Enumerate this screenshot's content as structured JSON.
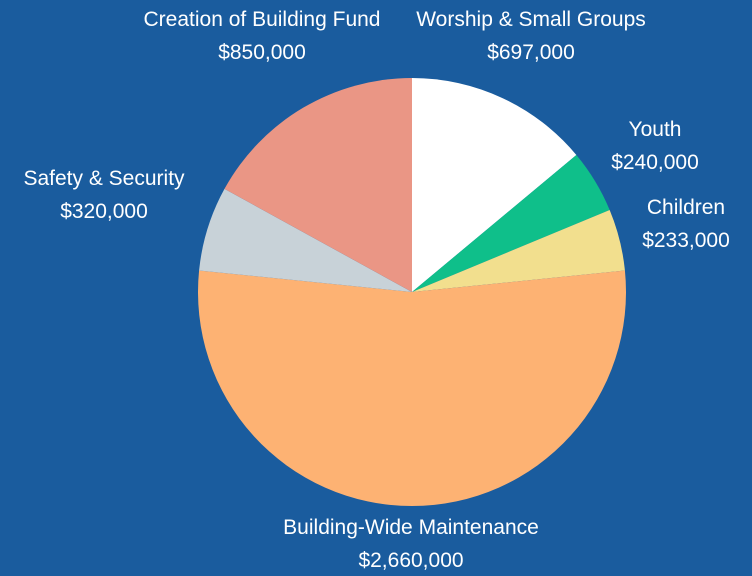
{
  "chart_data": {
    "type": "pie",
    "title": "",
    "background": "#1a5c9e",
    "start_angle_deg": 0,
    "direction": "clockwise",
    "slices": [
      {
        "label": "Worship & Small Groups",
        "value": 697000,
        "value_label": "$697,000",
        "color": "#ffffff"
      },
      {
        "label": "Youth",
        "value": 240000,
        "value_label": "$240,000",
        "color": "#0fbf8a"
      },
      {
        "label": "Children",
        "value": 233000,
        "value_label": "$233,000",
        "color": "#f2df8e"
      },
      {
        "label": "Building-Wide Maintenance",
        "value": 2660000,
        "value_label": "$2,660,000",
        "color": "#fdb273"
      },
      {
        "label": "Safety & Security",
        "value": 320000,
        "value_label": "$320,000",
        "color": "#c8d2d8"
      },
      {
        "label": "Creation of Building Fund",
        "value": 850000,
        "value_label": "$850,000",
        "color": "#ea9685"
      }
    ]
  }
}
